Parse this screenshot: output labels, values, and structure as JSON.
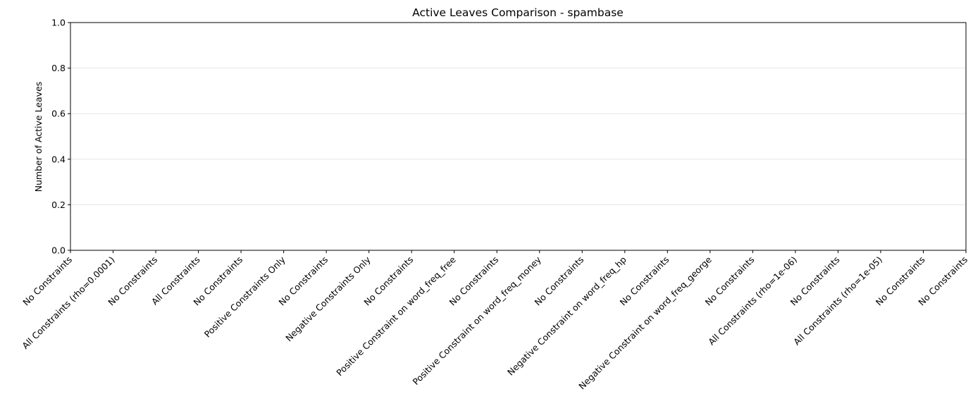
{
  "chart_data": {
    "type": "bar",
    "title": "Active Leaves Comparison - spambase",
    "ylabel": "Number of Active Leaves",
    "categories": [
      "No Constraints",
      "All Constraints (rho=0.0001)",
      "No Constraints",
      "All Constraints",
      "No Constraints",
      "Positive Constraints Only",
      "No Constraints",
      "Negative Constraints Only",
      "No Constraints",
      "Positive Constraint on word_freq_free",
      "No Constraints",
      "Positive Constraint on word_freq_money",
      "No Constraints",
      "Negative Constraint on word_freq_hp",
      "No Constraints",
      "Negative Constraint on word_freq_george",
      "No Constraints",
      "All Constraints (rho=1e-06)",
      "No Constraints",
      "All Constraints (rho=1e-05)",
      "No Constraints",
      "No Constraints"
    ],
    "values": [
      null,
      null,
      null,
      null,
      null,
      null,
      null,
      null,
      null,
      null,
      null,
      null,
      null,
      null,
      null,
      null,
      null,
      null,
      null,
      null,
      null,
      null
    ],
    "color": "#1f77b4",
    "ylim": [
      0,
      1
    ],
    "yticks": [
      {
        "value": 0,
        "label": "0.0"
      },
      {
        "value": 0.2,
        "label": "0.2"
      },
      {
        "value": 0.4,
        "label": "0.4"
      },
      {
        "value": 0.6,
        "label": "0.6"
      },
      {
        "value": 0.8,
        "label": "0.8"
      },
      {
        "value": 1,
        "label": "1.0"
      }
    ],
    "grid": true
  }
}
